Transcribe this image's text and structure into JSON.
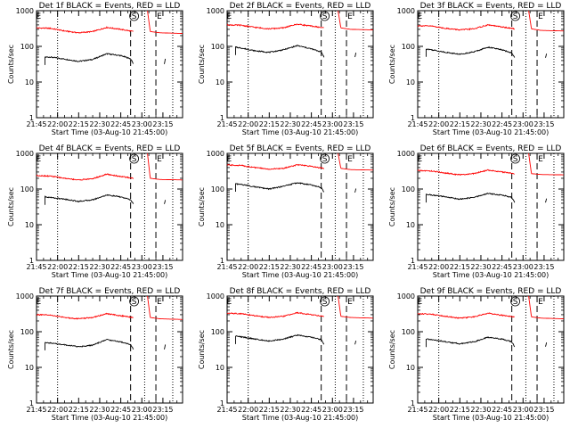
{
  "figure": {
    "x_ticks": [
      "21:45",
      "22:00",
      "22:15",
      "22:30",
      "22:45",
      "23:00",
      "23:15"
    ],
    "y_ticks": [
      "1",
      "10",
      "100",
      "1000"
    ],
    "ylabel": "Counts/sec",
    "xlabel": "Start Time (03-Aug-10 21:45:00)",
    "markers": [
      "E",
      "S",
      "E"
    ]
  },
  "colors": {
    "events": "#000000",
    "lld": "#ff0000"
  },
  "chart_data": [
    {
      "type": "line",
      "title": "Det 1f BLACK = Events, RED = LLD",
      "x_unit": "minutes since 21:45",
      "xlim": [
        0,
        104
      ],
      "ylim": [
        1,
        1000
      ],
      "yscale": "log",
      "series": [
        {
          "name": "Events",
          "color": "black",
          "x": [
            6,
            10,
            20,
            30,
            40,
            50,
            60,
            67,
            69
          ],
          "values": [
            50,
            50,
            44,
            38,
            43,
            62,
            55,
            45,
            32
          ]
        },
        {
          "name": "LLD",
          "color": "red",
          "x": [
            0,
            10,
            20,
            30,
            40,
            50,
            60,
            69
          ],
          "values": [
            330,
            320,
            270,
            240,
            260,
            340,
            300,
            260
          ]
        },
        {
          "name": "Events",
          "color": "black",
          "x": [
            91,
            92
          ],
          "values": [
            32,
            52
          ]
        },
        {
          "name": "LLD",
          "color": "red",
          "x": [
            79,
            81,
            88,
            104
          ],
          "values": [
            1000,
            260,
            240,
            230
          ]
        }
      ],
      "vlines": {
        "dotted": [
          15,
          77,
          97
        ],
        "dashed": [
          67,
          85
        ]
      }
    },
    {
      "type": "line",
      "title": "Det 2f BLACK = Events, RED = LLD",
      "x_unit": "minutes since 21:45",
      "xlim": [
        0,
        104
      ],
      "ylim": [
        1,
        1000
      ],
      "yscale": "log",
      "series": [
        {
          "name": "Events",
          "color": "black",
          "x": [
            6,
            10,
            20,
            30,
            40,
            50,
            60,
            67,
            69
          ],
          "values": [
            95,
            90,
            75,
            68,
            80,
            105,
            85,
            70,
            50
          ]
        },
        {
          "name": "LLD",
          "color": "red",
          "x": [
            0,
            10,
            20,
            30,
            40,
            50,
            60,
            69
          ],
          "values": [
            400,
            390,
            340,
            310,
            330,
            420,
            370,
            330
          ]
        },
        {
          "name": "Events",
          "color": "black",
          "x": [
            91,
            92
          ],
          "values": [
            50,
            75
          ]
        },
        {
          "name": "LLD",
          "color": "red",
          "x": [
            79,
            81,
            88,
            104
          ],
          "values": [
            1000,
            330,
            300,
            290
          ]
        }
      ],
      "vlines": {
        "dotted": [
          15,
          77,
          97
        ],
        "dashed": [
          67,
          85
        ]
      }
    },
    {
      "type": "line",
      "title": "Det 3f BLACK = Events, RED = LLD",
      "x_unit": "minutes since 21:45",
      "xlim": [
        0,
        104
      ],
      "ylim": [
        1,
        1000
      ],
      "yscale": "log",
      "series": [
        {
          "name": "Events",
          "color": "black",
          "x": [
            6,
            10,
            20,
            30,
            40,
            50,
            60,
            67,
            69
          ],
          "values": [
            85,
            80,
            68,
            60,
            70,
            95,
            80,
            65,
            48
          ]
        },
        {
          "name": "LLD",
          "color": "red",
          "x": [
            0,
            10,
            20,
            30,
            40,
            50,
            60,
            69
          ],
          "values": [
            380,
            370,
            320,
            290,
            310,
            400,
            350,
            310
          ]
        },
        {
          "name": "Events",
          "color": "black",
          "x": [
            91,
            92
          ],
          "values": [
            48,
            70
          ]
        },
        {
          "name": "LLD",
          "color": "red",
          "x": [
            79,
            81,
            88,
            104
          ],
          "values": [
            1000,
            310,
            280,
            270
          ]
        }
      ],
      "vlines": {
        "dotted": [
          15,
          77,
          97
        ],
        "dashed": [
          67,
          85
        ]
      }
    },
    {
      "type": "line",
      "title": "Det 4f BLACK = Events, RED = LLD",
      "x_unit": "minutes since 21:45",
      "xlim": [
        0,
        104
      ],
      "ylim": [
        1,
        1000
      ],
      "yscale": "log",
      "series": [
        {
          "name": "Events",
          "color": "black",
          "x": [
            6,
            10,
            20,
            30,
            40,
            50,
            60,
            67,
            69
          ],
          "values": [
            60,
            58,
            52,
            45,
            50,
            68,
            60,
            50,
            38
          ]
        },
        {
          "name": "LLD",
          "color": "red",
          "x": [
            0,
            10,
            20,
            30,
            40,
            50,
            60,
            69
          ],
          "values": [
            240,
            230,
            200,
            180,
            195,
            260,
            225,
            200
          ]
        },
        {
          "name": "Events",
          "color": "black",
          "x": [
            91,
            92
          ],
          "values": [
            38,
            55
          ]
        },
        {
          "name": "LLD",
          "color": "red",
          "x": [
            79,
            81,
            88,
            104
          ],
          "values": [
            1000,
            200,
            185,
            180
          ]
        }
      ],
      "vlines": {
        "dotted": [
          15,
          77,
          97
        ],
        "dashed": [
          67,
          85
        ]
      }
    },
    {
      "type": "line",
      "title": "Det 5f BLACK = Events, RED = LLD",
      "x_unit": "minutes since 21:45",
      "xlim": [
        0,
        104
      ],
      "ylim": [
        1,
        1000
      ],
      "yscale": "log",
      "series": [
        {
          "name": "Events",
          "color": "black",
          "x": [
            6,
            10,
            20,
            30,
            40,
            50,
            60,
            67,
            69
          ],
          "values": [
            140,
            135,
            115,
            100,
            120,
            150,
            130,
            110,
            80
          ]
        },
        {
          "name": "LLD",
          "color": "red",
          "x": [
            0,
            10,
            20,
            30,
            40,
            50,
            60,
            69
          ],
          "values": [
            470,
            460,
            400,
            360,
            380,
            480,
            430,
            380
          ]
        },
        {
          "name": "Events",
          "color": "black",
          "x": [
            91,
            92
          ],
          "values": [
            80,
            115
          ]
        },
        {
          "name": "LLD",
          "color": "red",
          "x": [
            79,
            81,
            88,
            104
          ],
          "values": [
            1000,
            380,
            350,
            340
          ]
        }
      ],
      "vlines": {
        "dotted": [
          15,
          77,
          97
        ],
        "dashed": [
          67,
          85
        ]
      }
    },
    {
      "type": "line",
      "title": "Det 6f BLACK = Events, RED = LLD",
      "x_unit": "minutes since 21:45",
      "xlim": [
        0,
        104
      ],
      "ylim": [
        1,
        1000
      ],
      "yscale": "log",
      "series": [
        {
          "name": "Events",
          "color": "black",
          "x": [
            6,
            10,
            20,
            30,
            40,
            50,
            60,
            67,
            69
          ],
          "values": [
            70,
            68,
            60,
            52,
            58,
            75,
            68,
            58,
            42
          ]
        },
        {
          "name": "LLD",
          "color": "red",
          "x": [
            0,
            10,
            20,
            30,
            40,
            50,
            60,
            69
          ],
          "values": [
            330,
            320,
            280,
            250,
            270,
            340,
            300,
            270
          ]
        },
        {
          "name": "Events",
          "color": "black",
          "x": [
            91,
            92
          ],
          "values": [
            42,
            60
          ]
        },
        {
          "name": "LLD",
          "color": "red",
          "x": [
            79,
            81,
            88,
            104
          ],
          "values": [
            1000,
            270,
            255,
            250
          ]
        }
      ],
      "vlines": {
        "dotted": [
          15,
          77,
          97
        ],
        "dashed": [
          67,
          85
        ]
      }
    },
    {
      "type": "line",
      "title": "Det 7f BLACK = Events, RED = LLD",
      "x_unit": "minutes since 21:45",
      "xlim": [
        0,
        104
      ],
      "ylim": [
        1,
        1000
      ],
      "yscale": "log",
      "series": [
        {
          "name": "Events",
          "color": "black",
          "x": [
            6,
            10,
            20,
            30,
            40,
            50,
            60,
            67,
            69
          ],
          "values": [
            50,
            48,
            43,
            38,
            42,
            60,
            52,
            44,
            32
          ]
        },
        {
          "name": "LLD",
          "color": "red",
          "x": [
            0,
            10,
            20,
            30,
            40,
            50,
            60,
            69
          ],
          "values": [
            300,
            290,
            250,
            230,
            250,
            320,
            280,
            250
          ]
        },
        {
          "name": "Events",
          "color": "black",
          "x": [
            91,
            92
          ],
          "values": [
            32,
            50
          ]
        },
        {
          "name": "LLD",
          "color": "red",
          "x": [
            79,
            81,
            88,
            104
          ],
          "values": [
            1000,
            250,
            230,
            220
          ]
        }
      ],
      "vlines": {
        "dotted": [
          15,
          77,
          97
        ],
        "dashed": [
          67,
          85
        ]
      }
    },
    {
      "type": "line",
      "title": "Det 8f BLACK = Events, RED = LLD",
      "x_unit": "minutes since 21:45",
      "xlim": [
        0,
        104
      ],
      "ylim": [
        1,
        1000
      ],
      "yscale": "log",
      "series": [
        {
          "name": "Events",
          "color": "black",
          "x": [
            6,
            10,
            20,
            30,
            40,
            50,
            60,
            67,
            69
          ],
          "values": [
            75,
            72,
            62,
            55,
            62,
            80,
            70,
            60,
            44
          ]
        },
        {
          "name": "LLD",
          "color": "red",
          "x": [
            0,
            10,
            20,
            30,
            40,
            50,
            60,
            69
          ],
          "values": [
            330,
            320,
            280,
            250,
            270,
            340,
            300,
            270
          ]
        },
        {
          "name": "Events",
          "color": "black",
          "x": [
            91,
            92
          ],
          "values": [
            44,
            62
          ]
        },
        {
          "name": "LLD",
          "color": "red",
          "x": [
            79,
            81,
            88,
            104
          ],
          "values": [
            1000,
            270,
            250,
            240
          ]
        }
      ],
      "vlines": {
        "dotted": [
          15,
          77,
          97
        ],
        "dashed": [
          67,
          85
        ]
      }
    },
    {
      "type": "line",
      "title": "Det 9f BLACK = Events, RED = LLD",
      "x_unit": "minutes since 21:45",
      "xlim": [
        0,
        104
      ],
      "ylim": [
        1,
        1000
      ],
      "yscale": "log",
      "series": [
        {
          "name": "Events",
          "color": "black",
          "x": [
            6,
            10,
            20,
            30,
            40,
            50,
            60,
            67,
            69
          ],
          "values": [
            62,
            60,
            52,
            46,
            52,
            70,
            62,
            52,
            38
          ]
        },
        {
          "name": "LLD",
          "color": "red",
          "x": [
            0,
            10,
            20,
            30,
            40,
            50,
            60,
            69
          ],
          "values": [
            320,
            310,
            270,
            240,
            260,
            330,
            290,
            260
          ]
        },
        {
          "name": "Events",
          "color": "black",
          "x": [
            91,
            92
          ],
          "values": [
            38,
            56
          ]
        },
        {
          "name": "LLD",
          "color": "red",
          "x": [
            79,
            81,
            88,
            104
          ],
          "values": [
            1000,
            260,
            240,
            230
          ]
        }
      ],
      "vlines": {
        "dotted": [
          15,
          77,
          97
        ],
        "dashed": [
          67,
          85
        ]
      }
    }
  ]
}
